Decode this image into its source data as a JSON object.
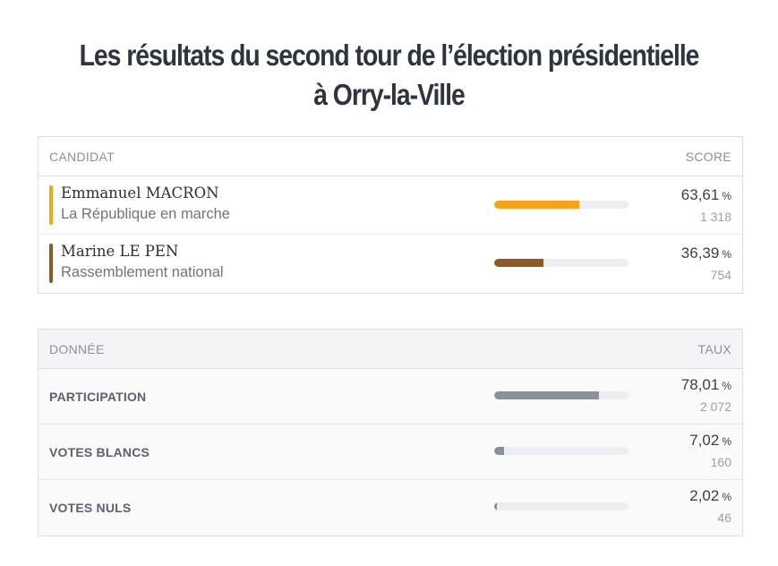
{
  "title": {
    "line1": "Les résultats du second tour de l’élection présidentielle",
    "line2": "à Orry-la-Ville"
  },
  "results_table": {
    "col_left": "CANDIDAT",
    "col_right": "SCORE",
    "rows": [
      {
        "name": "Emmanuel MACRON",
        "party": "La République en marche",
        "percent": "63,61",
        "unit": "%",
        "votes": "1 318",
        "fraction": 0.6361,
        "color": "#f5a31a"
      },
      {
        "name": "Marine LE PEN",
        "party": "Rassemblement national",
        "percent": "36,39",
        "unit": "%",
        "votes": "754",
        "fraction": 0.3639,
        "color": "#8c5a22"
      }
    ]
  },
  "data_table": {
    "col_left": "DONNÉE",
    "col_right": "TAUX",
    "rows": [
      {
        "label": "PARTICIPATION",
        "percent": "78,01",
        "unit": "%",
        "count": "2 072",
        "fraction": 0.7801,
        "color": "#8a909c"
      },
      {
        "label": "VOTES BLANCS",
        "percent": "7,02",
        "unit": "%",
        "count": "160",
        "fraction": 0.0702,
        "color": "#8a909c"
      },
      {
        "label": "VOTES NULS",
        "percent": "2,02",
        "unit": "%",
        "count": "46",
        "fraction": 0.0202,
        "color": "#8a909c"
      }
    ]
  }
}
